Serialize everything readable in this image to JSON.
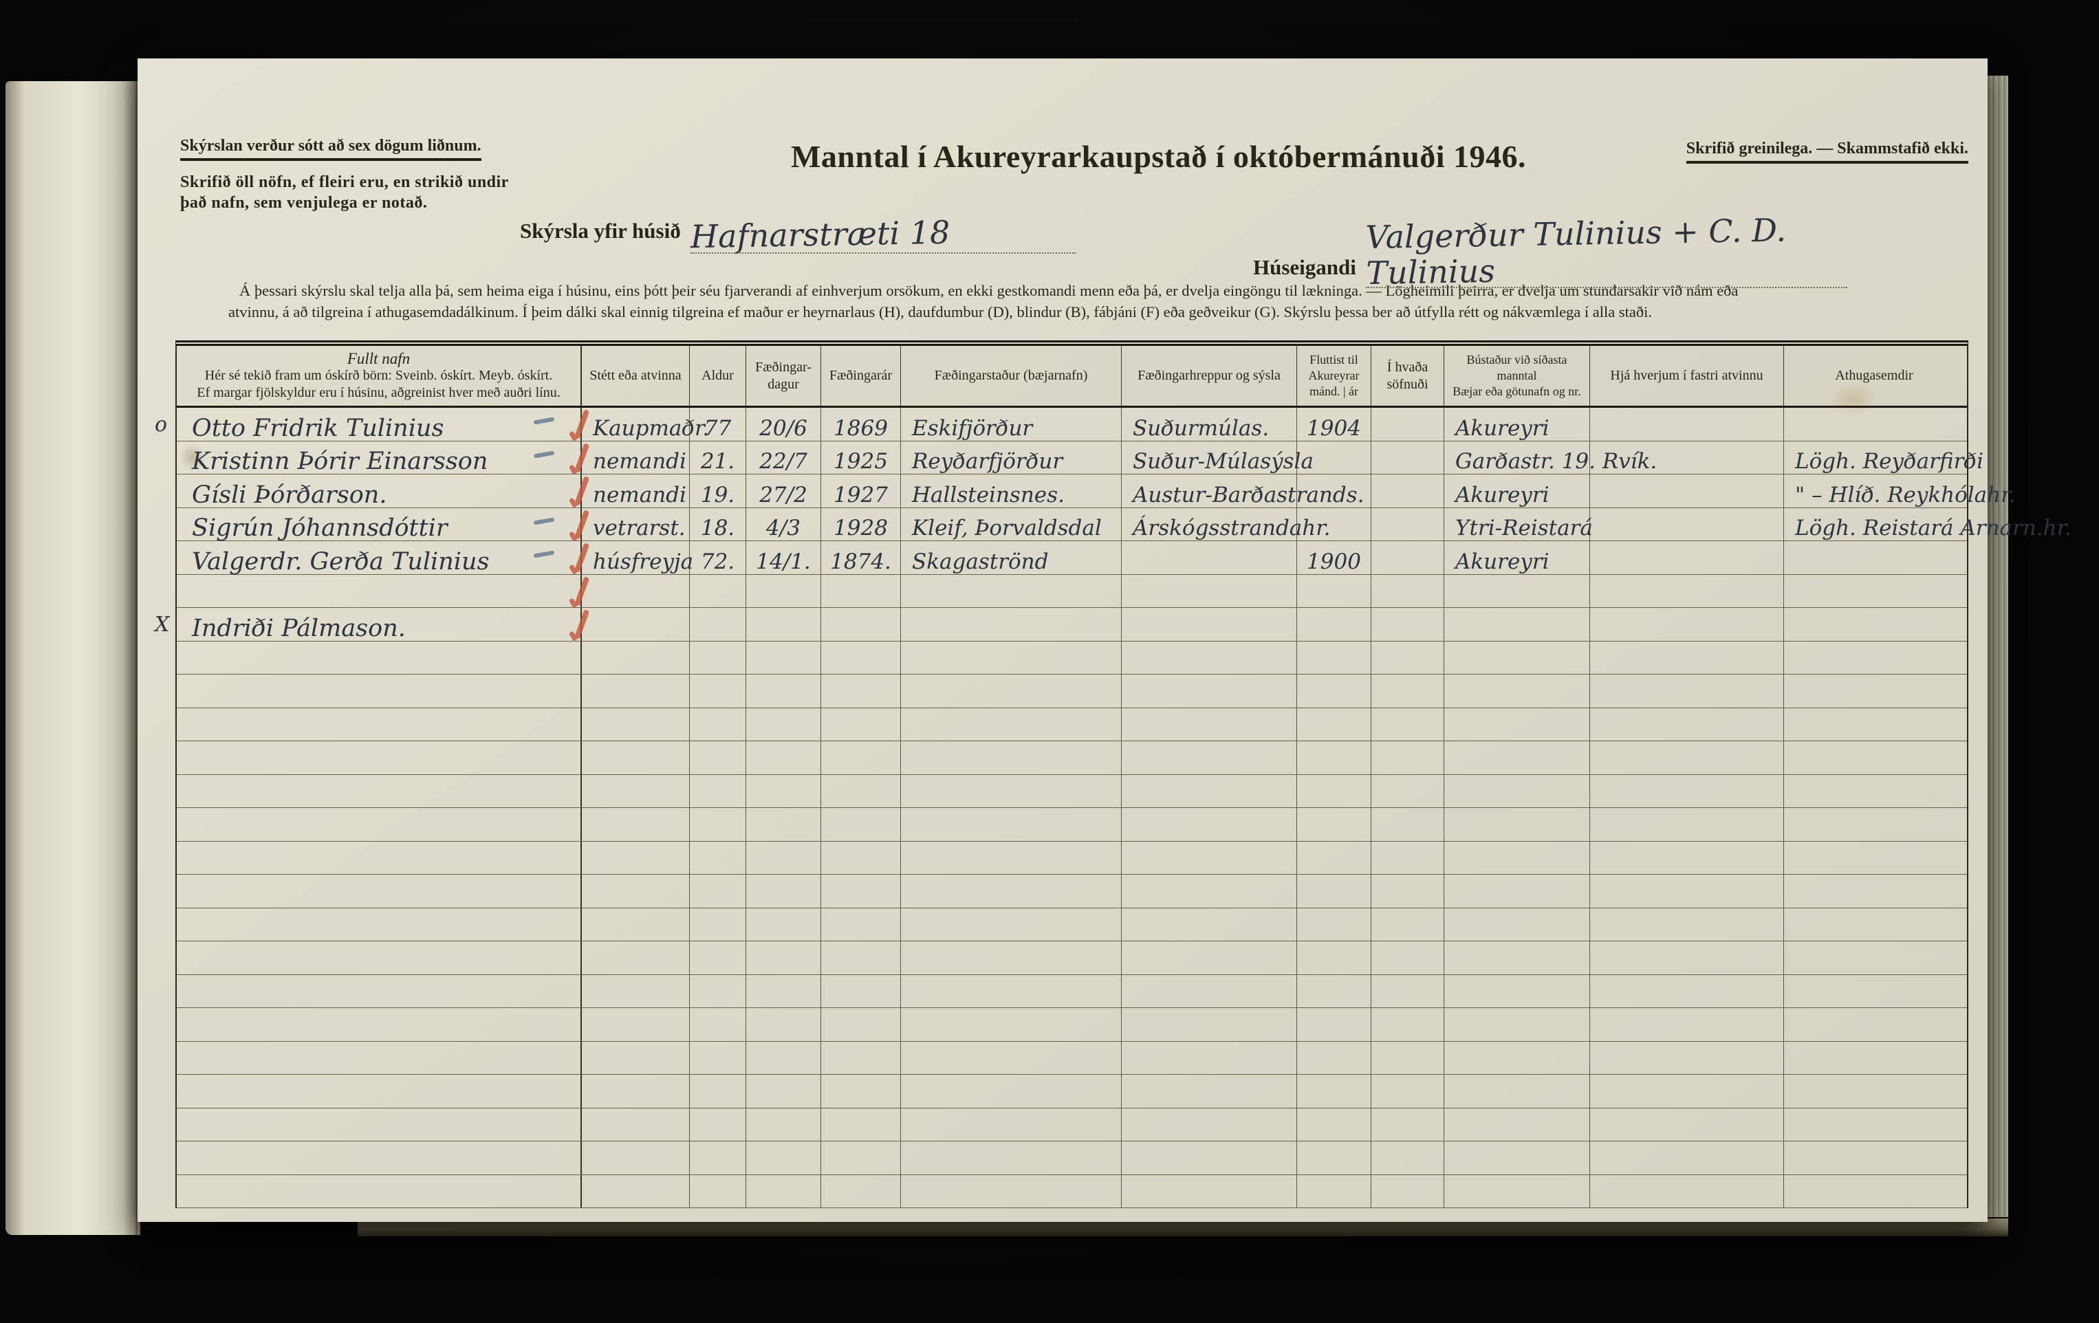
{
  "header": {
    "left_note_title": "Skýrslan verður sótt að sex dögum liðnum.",
    "left_note_body": "Skrifið öll nöfn, ef fleiri eru, en strikið undir það nafn, sem venjulega er notað.",
    "title": "Manntal í Akureyrarkaupstað í októbermánuði 1946.",
    "right_note": "Skrifið greinilega. — Skammstafið ekki.",
    "house_label": "Skýrsla yfir húsið",
    "house_value": "Hafnarstræti 18",
    "owner_label": "Húseigandi",
    "owner_value": "Valgerður Tulinius + C. D. Tulinius",
    "instructions_line1": "Á þessari skýrslu skal telja alla þá, sem heima eiga í húsinu, eins þótt þeir séu fjarverandi af einhverjum orsökum, en ekki gestkomandi menn eða þá, er dvelja eingöngu til lækninga. — Lögheimili þeirra, er dvelja um stundarsakir við nám eða",
    "instructions_line2": "atvinnu, á að tilgreina í athugasemdadálkinum. Í þeim dálki skal einnig tilgreina ef maður er heyrnarlaus (H), daufdumbur (D), blindur (B), fábjáni (F) eða geðveikur (G). Skýrslu þessa ber að útfylla rétt og nákvæmlega í alla staði."
  },
  "table": {
    "row_count": 24,
    "headers": {
      "name_title": "Fullt nafn",
      "name_sub1": "Hér sé tekið fram um óskírð börn: Sveinb. óskírt. Meyb. óskírt.",
      "name_sub2": "Ef margar fjölskyldur eru í húsinu, aðgreinist hver með auðri línu.",
      "occupation": "Stétt eða atvinna",
      "age": "Aldur",
      "birth_day": "Fæðingar-\ndagur",
      "birth_year": "Fæðingarár",
      "birth_place": "Fæðingarstaður (bæjarnafn)",
      "parish": "Fæðingarhreppur og sýsla",
      "moved": "Fluttist til\nAkureyrar\nmánd. | ár",
      "congregation": "Í hvaða\nsöfnuði",
      "residence": "Bústaður við síðasta\nmanntal\nBæjar eða götunafn og nr.",
      "employer": "Hjá hverjum í fastri atvinnu",
      "remarks": "Athugasemdir"
    },
    "rows": [
      {
        "mark": "o",
        "name": "Otto Fridrik Tulinius",
        "occupation": "Kaupmaðr.",
        "age": "77",
        "birth_day": "20/6",
        "birth_year": "1869",
        "birth_place": "Eskifjörður",
        "parish": "Suðurmúlas.",
        "moved": "1904",
        "residence": "Akureyri",
        "red": true,
        "blue_dash": true
      },
      {
        "name": "Kristinn Þórir Einarsson",
        "occupation": "nemandi",
        "age": "21.",
        "birth_day": "22/7",
        "birth_year": "1925",
        "birth_place": "Reyðarfjörður",
        "parish": "Suður-Múlasýsla",
        "residence": "Garðastr. 19. Rvík.",
        "remarks": "Lögh. Reyðarfirði",
        "red": true,
        "blue_dash": true
      },
      {
        "name": "Gísli Þórðarson.",
        "occupation": "nemandi",
        "age": "19.",
        "birth_day": "27/2",
        "birth_year": "1927",
        "birth_place": "Hallsteinsnes.",
        "parish": "Austur-Barðastrands.",
        "residence": "Akureyri",
        "remarks": "\" – Hlíð. Reykhólahr.",
        "red": true
      },
      {
        "name": "Sigrún Jóhannsdóttir",
        "occupation": "vetrarst.",
        "age": "18.",
        "birth_day": "4/3",
        "birth_year": "1928",
        "birth_place": "Kleif, Þorvaldsdal",
        "parish": "Árskógsstrandahr.",
        "residence": "Ytri-Reistará",
        "remarks": "Lögh. Reistará Arnarn.hr.",
        "red": true,
        "blue_dash": true
      },
      {
        "name": "Valgerdr. Gerða Tulinius",
        "occupation": "húsfreyja",
        "age": "72.",
        "birth_day": "14/1.",
        "birth_year": "1874.",
        "birth_place": "Skagaströnd",
        "moved": "1900",
        "residence": "Akureyri",
        "red": true,
        "blue_dash": true
      },
      {
        "red": true
      },
      {
        "mark": "X",
        "name": "Indriði Pálmason.",
        "red": true
      }
    ]
  }
}
